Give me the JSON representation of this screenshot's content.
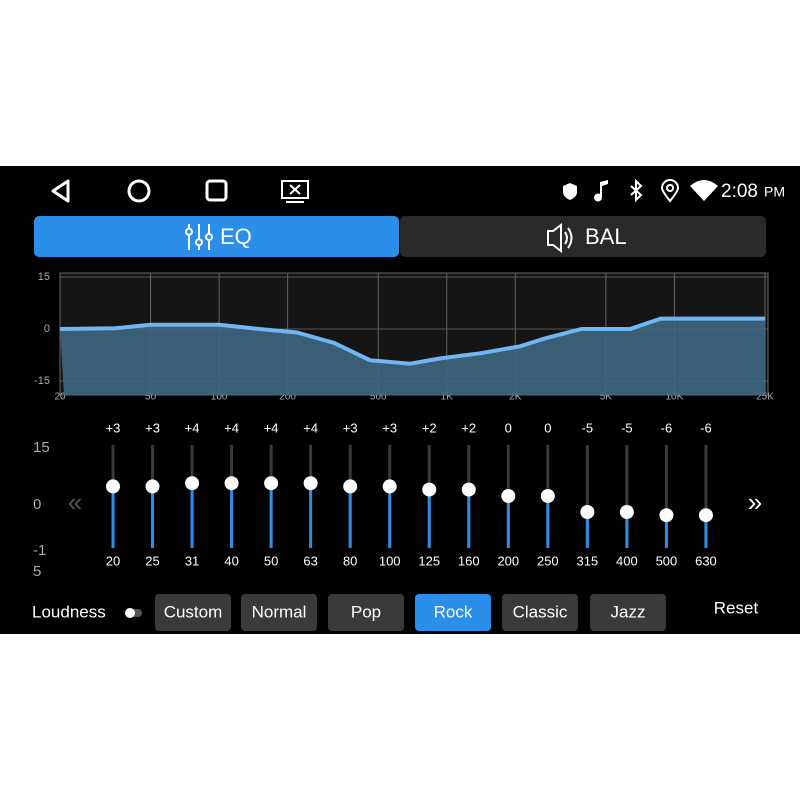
{
  "status_bar": {
    "time": "2:08",
    "ampm": "PM"
  },
  "tabs": [
    {
      "label": "EQ",
      "active": true
    },
    {
      "label": "BAL",
      "active": false
    }
  ],
  "curve": {
    "xlim": [
      20,
      25000
    ],
    "ylim": [
      -15,
      15
    ],
    "xscale": "log",
    "yticks": [
      15,
      0,
      -15
    ],
    "xticks": [
      20,
      50,
      100,
      200,
      500,
      {
        "value": 1000,
        "label": "1K"
      },
      {
        "value": 2000,
        "label": "2K"
      },
      {
        "value": 5000,
        "label": "5K"
      },
      {
        "value": 10000,
        "label": "10K"
      },
      {
        "value": 25000,
        "label": "25K"
      }
    ],
    "x": [
      20,
      35,
      50,
      100,
      140,
      220,
      320,
      460,
      690,
      930,
      1400,
      2100,
      2700,
      3900,
      6400,
      8700,
      25000
    ],
    "gain": [
      0,
      0.2,
      1.2,
      1.2,
      0.2,
      -1,
      -4,
      -9,
      -10,
      -8.5,
      -7,
      -5,
      -2.7,
      0,
      0,
      3,
      3
    ]
  },
  "bands": {
    "ylim": [
      -15,
      15
    ],
    "yticks": [
      15,
      0,
      {
        "value": -15,
        "label": "-1\n5"
      }
    ],
    "freqs": [
      "20",
      "25",
      "31",
      "40",
      "50",
      "63",
      "80",
      "100",
      "125",
      "160",
      "200",
      "250",
      "315",
      "400",
      "500",
      "630"
    ],
    "gains": [
      3,
      3,
      4,
      4,
      4,
      4,
      3,
      3,
      2,
      2,
      0,
      0,
      -5,
      -5,
      -6,
      -6
    ],
    "gain_labels": [
      "+3",
      "+3",
      "+4",
      "+4",
      "+4",
      "+4",
      "+3",
      "+3",
      "+2",
      "+2",
      "0",
      "0",
      "-5",
      "-5",
      "-6",
      "-6"
    ]
  },
  "loudness": {
    "label": "Loudness",
    "on": false
  },
  "presets": {
    "items": [
      "Custom",
      "Normal",
      "Pop",
      "Rock",
      "Classic",
      "Jazz"
    ],
    "selected": 3
  },
  "reset": "Reset"
}
